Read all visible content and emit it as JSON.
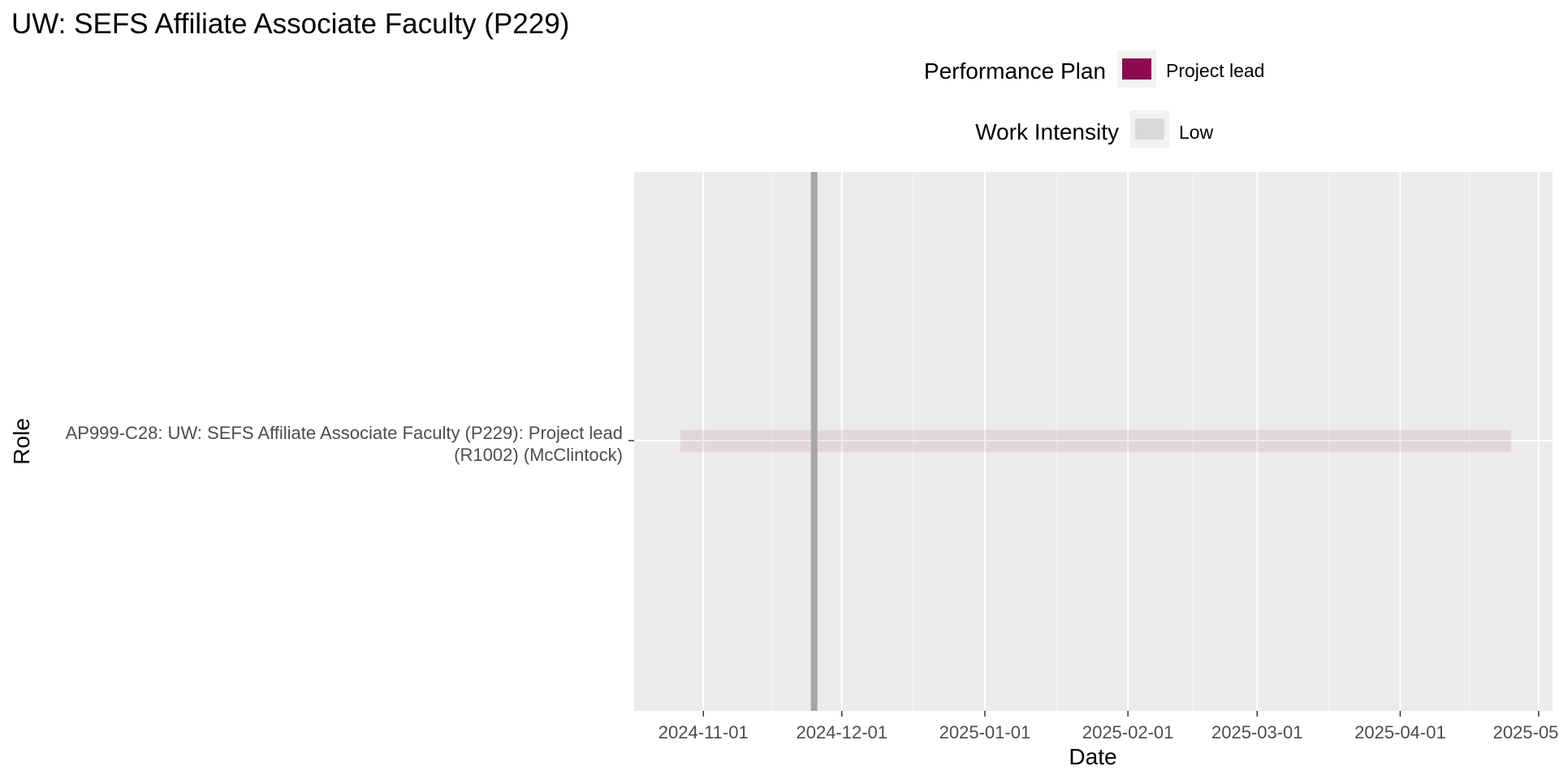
{
  "chart_data": {
    "type": "gantt",
    "title": "UW: SEFS Affiliate Associate Faculty (P229)",
    "xlabel": "Date",
    "ylabel": "Role",
    "x_ticks": [
      "2024-11-01",
      "2024-12-01",
      "2025-01-01",
      "2025-02-01",
      "2025-03-01",
      "2025-04-01",
      "2025-05-01"
    ],
    "xlim": [
      "2024-10-17",
      "2025-05-04"
    ],
    "grid": true,
    "legend_position": "top",
    "legends": [
      {
        "title": "Performance Plan",
        "items": [
          {
            "label": "Project lead",
            "color": "#8b0a50"
          }
        ]
      },
      {
        "title": "Work Intensity",
        "items": [
          {
            "label": "Low",
            "color": "#d9d9d9"
          }
        ]
      }
    ],
    "roles": [
      {
        "label_line1": "AP999-C28: UW: SEFS Affiliate Associate Faculty (P229): Project lead",
        "label_line2": "(R1002) (McClintock)",
        "start": "2024-10-27",
        "end": "2025-04-25",
        "plan": "Project lead",
        "intensity": "Low",
        "color": "#8b0a50"
      }
    ],
    "current_date": "2024-11-25",
    "current_date_color": "#a6a6a6"
  }
}
